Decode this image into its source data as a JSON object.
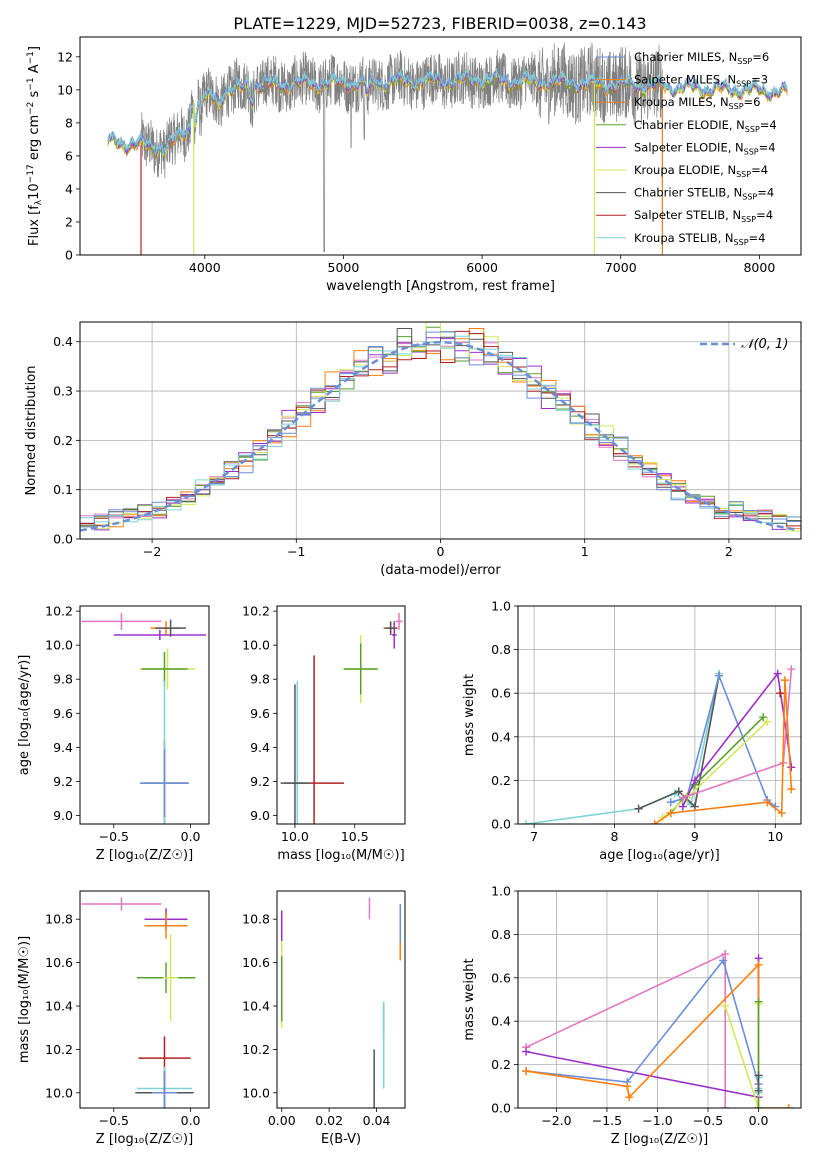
{
  "figure": {
    "title": "PLATE=1229, MJD=52723, FIBERID=0038, z=0.143"
  },
  "colors": {
    "Chabrier MILES": "#6a8fd8",
    "Salpeter MILES": "#ff7f0e",
    "Kroupa MILES": "#e67e22",
    "Chabrier ELODIE": "#5aa02c",
    "Salpeter ELODIE": "#9b30c8",
    "Kroupa ELODIE": "#d4e85a",
    "Chabrier STELIB": "#555555",
    "Salpeter STELIB": "#b22222",
    "Kroupa STELIB": "#7fd3d6",
    "data": "#808080",
    "normal": "#6a8fd8",
    "pink": "#e377c2"
  },
  "chart_data": [
    {
      "id": "spectrum",
      "type": "line",
      "xlabel": "wavelength [Angstrom, rest frame]",
      "ylabel_main": "Flux [f",
      "ylabel_sub": "λ",
      "ylabel_rest": "10",
      "ylabel_exp": "−17",
      "ylabel_units": " erg cm",
      "ylabel_exp2": "−2",
      "ylabel_units2": " s",
      "ylabel_exp3": "−1",
      "ylabel_units3": " A",
      "ylabel_exp4": "−1",
      "ylabel_end": "]",
      "xlim": [
        3100,
        8300
      ],
      "ylim": [
        0,
        13.2
      ],
      "xticks": [
        4000,
        5000,
        6000,
        7000,
        8000
      ],
      "yticks": [
        0,
        2,
        4,
        6,
        8,
        10,
        12
      ],
      "observed_range": [
        3540,
        7300
      ],
      "model_range": [
        3300,
        8200
      ],
      "legend": [
        {
          "name": "Chabrier MILES",
          "nssp": "6",
          "color": "#6a8fd8"
        },
        {
          "name": "Salpeter MILES",
          "nssp": "3",
          "color": "#ff7f0e"
        },
        {
          "name": "Kroupa MILES",
          "nssp": "6",
          "color": "#e67e22"
        },
        {
          "name": "Chabrier ELODIE",
          "nssp": "4",
          "color": "#5aa02c"
        },
        {
          "name": "Salpeter ELODIE",
          "nssp": "4",
          "color": "#9b30c8"
        },
        {
          "name": "Kroupa ELODIE",
          "nssp": "4",
          "color": "#d4e85a"
        },
        {
          "name": "Chabrier STELIB",
          "nssp": "4",
          "color": "#555555"
        },
        {
          "name": "Salpeter STELIB",
          "nssp": "4",
          "color": "#b22222"
        },
        {
          "name": "Kroupa STELIB",
          "nssp": "4",
          "color": "#7fd3d6"
        }
      ],
      "legend_prefix": "N",
      "legend_sub": "SSP",
      "legend_eq": "="
    },
    {
      "id": "residuals",
      "type": "histogram",
      "xlabel": "(data-model)/error",
      "ylabel": "Normed distribution",
      "xlim": [
        -2.5,
        2.5
      ],
      "ylim": [
        0,
        0.44
      ],
      "xticks": [
        -2,
        -1,
        0,
        1,
        2
      ],
      "yticks": [
        0.0,
        0.1,
        0.2,
        0.3,
        0.4
      ],
      "grid": true,
      "legend_label": "𝒩(0, 1)",
      "bin_width": 0.1
    },
    {
      "id": "age_vs_Z",
      "type": "errorbar",
      "xlabel": "Z [log₁₀(Z/Z☉)]",
      "ylabel": "age  [log₁₀(age/yr)]",
      "xlim": [
        -0.72,
        0.12
      ],
      "ylim": [
        8.95,
        10.23
      ],
      "xticks": [
        -0.5,
        0.0
      ],
      "yticks": [
        9.0,
        9.2,
        9.4,
        9.6,
        9.8,
        10.0,
        10.2
      ],
      "points": [
        {
          "x": -0.45,
          "y": 10.14,
          "xerr": 0.26,
          "yerr": 0.05,
          "color": "#e377c2"
        },
        {
          "x": -0.16,
          "y": 10.1,
          "xerr": 0.1,
          "yerr": 0.04,
          "color": "#ff7f0e"
        },
        {
          "x": -0.2,
          "y": 10.06,
          "xerr": 0.3,
          "yerr": 0.03,
          "color": "#9b30c8"
        },
        {
          "x": -0.13,
          "y": 10.1,
          "xerr": 0.1,
          "yerr": 0.05,
          "color": "#555555"
        },
        {
          "x": -0.15,
          "y": 9.86,
          "xerr": 0.18,
          "yerr": 0.12,
          "color": "#d4e85a"
        },
        {
          "x": -0.17,
          "y": 9.86,
          "xerr": 0.15,
          "yerr": 0.1,
          "color": "#5aa02c"
        },
        {
          "x": -0.17,
          "y": 9.19,
          "xerr": 0.15,
          "yerr": 0.25,
          "color": "#b22222"
        },
        {
          "x": -0.17,
          "y": 9.19,
          "xerr": 0.15,
          "yerr": 0.6,
          "color": "#7fd3d6"
        },
        {
          "x": -0.17,
          "y": 9.19,
          "xerr": 0.16,
          "yerr": 0.2,
          "color": "#6a8fd8"
        }
      ]
    },
    {
      "id": "age_vs_mass",
      "type": "errorbar",
      "xlabel": "mass [log₁₀(M/M☉)]",
      "ylabel": "",
      "xlim": [
        9.85,
        10.92
      ],
      "ylim": [
        8.95,
        10.23
      ],
      "xticks": [
        10.0,
        10.5
      ],
      "yticks": [
        9.0,
        9.2,
        9.4,
        9.6,
        9.8,
        10.0,
        10.2
      ],
      "points": [
        {
          "x": 10.87,
          "y": 10.14,
          "xerr": 0.03,
          "yerr": 0.05,
          "color": "#e377c2"
        },
        {
          "x": 10.8,
          "y": 10.1,
          "xerr": 0.06,
          "yerr": 0.04,
          "color": "#ff7f0e"
        },
        {
          "x": 10.83,
          "y": 10.06,
          "xerr": 0.02,
          "yerr": 0.08,
          "color": "#9b30c8"
        },
        {
          "x": 10.8,
          "y": 10.1,
          "xerr": 0.05,
          "yerr": 0.04,
          "color": "#555555"
        },
        {
          "x": 10.55,
          "y": 9.86,
          "xerr": 0.15,
          "yerr": 0.2,
          "color": "#d4e85a"
        },
        {
          "x": 10.55,
          "y": 9.86,
          "xerr": 0.14,
          "yerr": 0.15,
          "color": "#5aa02c"
        },
        {
          "x": 10.16,
          "y": 9.19,
          "xerr": 0.25,
          "yerr": 0.75,
          "color": "#b22222"
        },
        {
          "x": 10.02,
          "y": 9.19,
          "xerr": 0.1,
          "yerr": 0.6,
          "color": "#7fd3d6"
        },
        {
          "x": 10.0,
          "y": 9.19,
          "xerr": 0.12,
          "yerr": 0.58,
          "color": "#555555"
        }
      ]
    },
    {
      "id": "weight_vs_age",
      "type": "line",
      "xlabel": "age  [log₁₀(age/yr)]",
      "ylabel": "mass weight",
      "xlim": [
        6.8,
        10.32
      ],
      "ylim": [
        0.0,
        1.0
      ],
      "xticks": [
        7,
        8,
        9,
        10
      ],
      "yticks": [
        0.0,
        0.2,
        0.4,
        0.6,
        0.8,
        1.0
      ],
      "grid": true,
      "series": [
        {
          "color": "#7fd3d6",
          "x": [
            6.9,
            8.3,
            8.75,
            8.95,
            9.3
          ],
          "y": [
            0.0,
            0.07,
            0.14,
            0.09,
            0.69
          ]
        },
        {
          "color": "#555555",
          "x": [
            8.3,
            8.8,
            9.0,
            9.3
          ],
          "y": [
            0.07,
            0.15,
            0.08,
            0.68
          ]
        },
        {
          "color": "#6a8fd8",
          "x": [
            8.7,
            8.9,
            9.3,
            9.9,
            10.0
          ],
          "y": [
            0.1,
            0.12,
            0.68,
            0.11,
            0.08
          ]
        },
        {
          "color": "#5aa02c",
          "x": [
            8.7,
            9.0,
            9.85
          ],
          "y": [
            0.05,
            0.18,
            0.49
          ]
        },
        {
          "color": "#d4e85a",
          "x": [
            8.6,
            8.9,
            9.9
          ],
          "y": [
            0.03,
            0.12,
            0.47
          ]
        },
        {
          "color": "#9b30c8",
          "x": [
            8.85,
            9.0,
            10.03,
            10.2
          ],
          "y": [
            0.08,
            0.2,
            0.69,
            0.26
          ]
        },
        {
          "color": "#e377c2",
          "x": [
            8.85,
            10.1,
            10.2
          ],
          "y": [
            0.12,
            0.28,
            0.71
          ]
        },
        {
          "color": "#ff7f0e",
          "x": [
            8.5,
            8.7,
            9.9,
            10.08,
            10.12,
            10.2
          ],
          "y": [
            0.0,
            0.05,
            0.1,
            0.05,
            0.66,
            0.16
          ]
        },
        {
          "color": "#b22222",
          "x": [
            10.06
          ],
          "y": [
            0.6
          ]
        }
      ]
    },
    {
      "id": "mass_vs_Z",
      "type": "errorbar",
      "xlabel": "Z [log₁₀(Z/Z☉)]",
      "ylabel": "mass [log₁₀(M/M☉)]",
      "xlim": [
        -0.72,
        0.12
      ],
      "ylim": [
        9.93,
        10.93
      ],
      "xticks": [
        -0.5,
        0.0
      ],
      "yticks": [
        10.0,
        10.2,
        10.4,
        10.6,
        10.8
      ],
      "points": [
        {
          "x": -0.45,
          "y": 10.87,
          "xerr": 0.26,
          "yerr": 0.03,
          "color": "#e377c2"
        },
        {
          "x": -0.16,
          "y": 10.8,
          "xerr": 0.14,
          "yerr": 0.05,
          "color": "#9b30c8"
        },
        {
          "x": -0.16,
          "y": 10.77,
          "xerr": 0.14,
          "yerr": 0.06,
          "color": "#ff7f0e"
        },
        {
          "x": -0.16,
          "y": 10.53,
          "xerr": 0.19,
          "yerr": 0.07,
          "color": "#5aa02c"
        },
        {
          "x": -0.13,
          "y": 10.53,
          "xerr": 0.05,
          "yerr": 0.2,
          "color": "#d4e85a"
        },
        {
          "x": -0.17,
          "y": 10.16,
          "xerr": 0.17,
          "yerr": 0.1,
          "color": "#b22222"
        },
        {
          "x": -0.17,
          "y": 10.02,
          "xerr": 0.18,
          "yerr": 0.1,
          "color": "#7fd3d6"
        },
        {
          "x": -0.17,
          "y": 10.0,
          "xerr": 0.19,
          "yerr": 0.1,
          "color": "#555555"
        },
        {
          "x": -0.17,
          "y": 10.0,
          "xerr": 0.08,
          "yerr": 0.1,
          "color": "#6a8fd8"
        }
      ]
    },
    {
      "id": "mass_vs_EBV",
      "type": "errorbar",
      "xlabel": "E(B-V)",
      "ylabel": "",
      "xlim": [
        -0.002,
        0.052
      ],
      "ylim": [
        9.93,
        10.93
      ],
      "xticks": [
        0.0,
        0.02,
        0.04
      ],
      "yticks": [
        10.0,
        10.2,
        10.4,
        10.6,
        10.8
      ],
      "points": [
        {
          "x": 0.0,
          "y": 10.75,
          "xerr": 0.0,
          "yerr": 0.09,
          "color": "#9b30c8"
        },
        {
          "x": 0.0,
          "y": 10.5,
          "xerr": 0.0,
          "yerr": 0.2,
          "color": "#d4e85a"
        },
        {
          "x": 0.0,
          "y": 10.48,
          "xerr": 0.0,
          "yerr": 0.15,
          "color": "#5aa02c"
        },
        {
          "x": 0.037,
          "y": 10.85,
          "xerr": 0.0,
          "yerr": 0.05,
          "color": "#e377c2"
        },
        {
          "x": 0.05,
          "y": 10.74,
          "xerr": 0.0,
          "yerr": 0.13,
          "color": "#ff7f0e"
        },
        {
          "x": 0.05,
          "y": 10.78,
          "xerr": 0.0,
          "yerr": 0.09,
          "color": "#6a8fd8"
        },
        {
          "x": 0.043,
          "y": 10.33,
          "xerr": 0.0,
          "yerr": 0.08,
          "color": "#b22222"
        },
        {
          "x": 0.043,
          "y": 10.22,
          "xerr": 0.0,
          "yerr": 0.2,
          "color": "#7fd3d6"
        },
        {
          "x": 0.039,
          "y": 10.05,
          "xerr": 0.0,
          "yerr": 0.15,
          "color": "#555555"
        }
      ]
    },
    {
      "id": "weight_vs_Z",
      "type": "line",
      "xlabel": "Z [log₁₀(Z/Z☉)]",
      "ylabel": "mass weight",
      "xlim": [
        -2.38,
        0.42
      ],
      "ylim": [
        0.0,
        1.0
      ],
      "xticks": [
        -2.0,
        -1.5,
        -1.0,
        -0.5,
        0.0
      ],
      "yticks": [
        0.0,
        0.2,
        0.4,
        0.6,
        0.8,
        1.0
      ],
      "grid": true,
      "series": [
        {
          "color": "#e377c2",
          "x": [
            -2.3,
            -0.33,
            -0.33
          ],
          "y": [
            0.28,
            0.71,
            0.0
          ]
        },
        {
          "color": "#9b30c8",
          "x": [
            -2.3,
            0.0,
            0.0
          ],
          "y": [
            0.26,
            0.05,
            0.69
          ]
        },
        {
          "color": "#6a8fd8",
          "x": [
            -2.3,
            -1.3,
            -0.35,
            0.0,
            0.0
          ],
          "y": [
            0.17,
            0.12,
            0.68,
            0.11,
            0.08
          ]
        },
        {
          "color": "#ff7f0e",
          "x": [
            -2.3,
            -1.3,
            -1.28,
            0.0,
            0.0,
            0.3
          ],
          "y": [
            0.17,
            0.1,
            0.05,
            0.66,
            0.0,
            0.0
          ]
        },
        {
          "color": "#d4e85a",
          "x": [
            -0.33,
            0.0,
            0.0
          ],
          "y": [
            0.47,
            0.0,
            0.48
          ]
        },
        {
          "color": "#5aa02c",
          "x": [
            0.0,
            0.0
          ],
          "y": [
            0.0,
            0.49
          ]
        },
        {
          "color": "#7fd3d6",
          "x": [
            0.0,
            0.0,
            0.0
          ],
          "y": [
            0.07,
            0.14,
            0.09
          ]
        },
        {
          "color": "#555555",
          "x": [
            0.0,
            0.0
          ],
          "y": [
            0.08,
            0.15
          ]
        }
      ]
    }
  ]
}
